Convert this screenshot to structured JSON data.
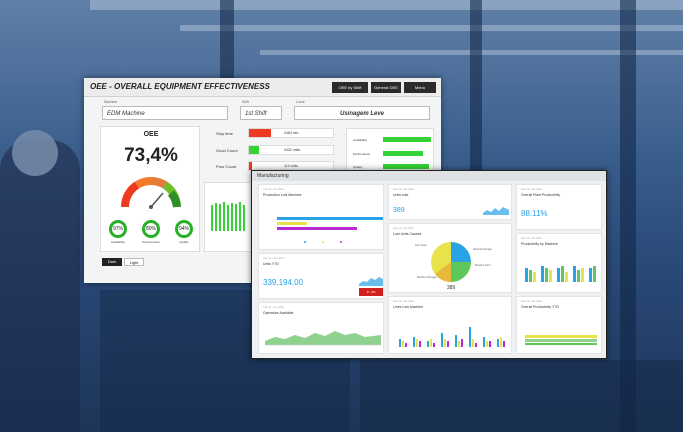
{
  "oee_panel": {
    "title": "OEE - OVERALL EQUIPMENT EFFECTIVENESS",
    "top_buttons": [
      "OEE by Shift",
      "General OEE",
      "Menu"
    ],
    "fields": [
      {
        "label": "Machine",
        "value": "EDM Machine"
      },
      {
        "label": "Shift",
        "value": "1st Shift"
      },
      {
        "label": "Local",
        "value": "Usinagem Leve"
      }
    ],
    "gauge_title": "OEE",
    "gauge_value": "73,4%",
    "gauge_fraction": 0.734,
    "rings": [
      {
        "value": "97%",
        "label": "Availability",
        "fraction": 0.97
      },
      {
        "value": "80%",
        "label": "Performance",
        "fraction": 0.8
      },
      {
        "value": "94%",
        "label": "Quality",
        "fraction": 0.94
      }
    ],
    "status_rows": [
      {
        "label": "Stop time",
        "value": "2484 min",
        "color": "#ee3a21",
        "fraction": 0.3
      },
      {
        "label": "Good Count",
        "value": "3432 units",
        "color": "#35d335",
        "fraction": 0.15
      },
      {
        "label": "Poor Count",
        "value": "112 units",
        "color": "#ee3a21",
        "fraction": 0.05
      }
    ],
    "metric_rows": [
      {
        "label": "Availability",
        "value": "97%",
        "fraction": 0.97
      },
      {
        "label": "Performance",
        "value": "80%",
        "fraction": 0.8
      },
      {
        "label": "Quality",
        "value": "94%",
        "fraction": 0.94
      }
    ],
    "mode_buttons": [
      "Dark",
      "Light"
    ]
  },
  "mfg_panel": {
    "title": "Manufacturing",
    "tiles": {
      "prod_machine": {
        "small": "Last 12 • Jan 2019",
        "title": "Production Lots Machine"
      },
      "units_sold": {
        "small": "Last 12 • Jan 2019",
        "title": "Units sold",
        "value": "389"
      },
      "plant_productivity": {
        "small": "Last 12 • Jan 2019",
        "title": "Overall Plant Productivity",
        "value": "88.11%"
      },
      "units_ytd": {
        "small": "Last 12 • Jan 2019",
        "title": "Units YTD",
        "value": "339,194.00",
        "badge": "▼ -6%"
      },
      "lost_units": {
        "small": "Last 12 • Jan 2019",
        "title": "Lost Units Causes",
        "center": "389"
      },
      "prod_by_machine": {
        "small": "Last 12 • Jan 2019",
        "title": "Productivity by Machine"
      },
      "operators": {
        "small": "Last 12 • Jan 2019",
        "title": "Operators Available"
      },
      "lines_machine": {
        "small": "Last 12 • Jan 2019",
        "title": "Lines Lots Machine"
      },
      "overall_ytd": {
        "small": "Last 12 • Jan 2019",
        "title": "Overall Productivity YTD"
      }
    },
    "pie_legend": [
      "Top Cause",
      "Material Damage",
      "Machine Error",
      "Machine Damage"
    ]
  },
  "colors": {
    "accent": "#29a3e6",
    "green": "#35d335",
    "red": "#ee3a21",
    "yellow": "#e8e34a",
    "purple": "#b72bd1"
  }
}
